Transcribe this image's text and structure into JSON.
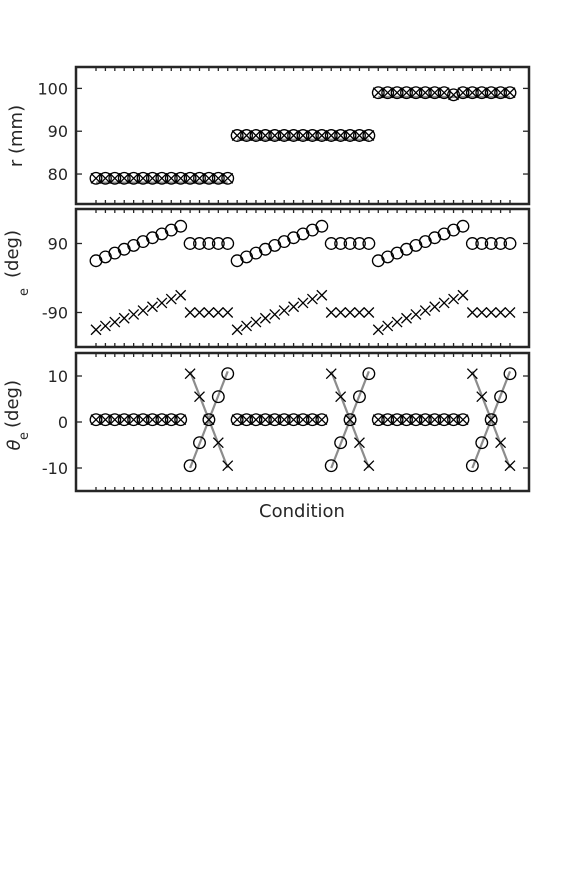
{
  "chart_data": {
    "type": "scatter",
    "xlabel": "Condition",
    "n_conditions": 45,
    "panels": [
      {
        "id": "r",
        "ylabel": "r (mm)",
        "ylabel_sub": "",
        "ylim": [
          73,
          105
        ],
        "yticks": [
          80,
          90,
          100
        ],
        "yticklabels": [
          "80",
          "90",
          "100"
        ],
        "series": [
          {
            "marker": "circle",
            "values": [
              79,
              79,
              79,
              79,
              79,
              79,
              79,
              79,
              79,
              79,
              79,
              79,
              79,
              79,
              79,
              89,
              89,
              89,
              89,
              89,
              89,
              89,
              89,
              89,
              89,
              89,
              89,
              89,
              89,
              89,
              99,
              99,
              99,
              99,
              99,
              99,
              99,
              99,
              98.5,
              99,
              99,
              99,
              99,
              99,
              99
            ]
          },
          {
            "marker": "x",
            "values": [
              79,
              79,
              79,
              79,
              79,
              79,
              79,
              79,
              79,
              79,
              79,
              79,
              79,
              79,
              79,
              89,
              89,
              89,
              89,
              89,
              89,
              89,
              89,
              89,
              89,
              89,
              89,
              89,
              89,
              89,
              99,
              99,
              99,
              99,
              99,
              99,
              99,
              99,
              98.5,
              99,
              99,
              99,
              99,
              99,
              99
            ]
          }
        ],
        "reference_lines": [
          {
            "x_range": [
              1,
              15
            ],
            "y": 78
          },
          {
            "x_range": [
              16,
              30
            ],
            "y": 88
          },
          {
            "x_range": [
              31,
              45
            ],
            "y": 98
          }
        ]
      },
      {
        "id": "phi",
        "ylabel": "(deg)",
        "ylabel_sub": "e",
        "ylim": [
          -180,
          180
        ],
        "yticks": [
          -90,
          90
        ],
        "yticklabels": [
          "-90",
          "90"
        ],
        "series": [
          {
            "marker": "circle",
            "values": [
              45,
              55,
              65,
              75,
              85,
              95,
              105,
              115,
              125,
              135,
              90,
              90,
              90,
              90,
              90,
              45,
              55,
              65,
              75,
              85,
              95,
              105,
              115,
              125,
              135,
              90,
              90,
              90,
              90,
              90,
              45,
              55,
              65,
              75,
              85,
              95,
              105,
              115,
              125,
              135,
              90,
              90,
              90,
              90,
              90
            ]
          },
          {
            "marker": "x",
            "values": [
              -135,
              -125,
              -115,
              -105,
              -95,
              -85,
              -75,
              -65,
              -55,
              -45,
              -90,
              -90,
              -90,
              -90,
              -90,
              -135,
              -125,
              -115,
              -105,
              -95,
              -85,
              -75,
              -65,
              -55,
              -45,
              -90,
              -90,
              -90,
              -90,
              -90,
              -135,
              -125,
              -115,
              -105,
              -95,
              -85,
              -75,
              -65,
              -55,
              -45,
              -90,
              -90,
              -90,
              -90,
              -90
            ]
          }
        ]
      },
      {
        "id": "theta",
        "ylabel": "(deg)",
        "ylabel_greek": "θ",
        "ylabel_sub": "e",
        "ylim": [
          -15,
          15
        ],
        "yticks": [
          -10,
          0,
          10
        ],
        "yticklabels": [
          "-10",
          "0",
          "10"
        ],
        "series": [
          {
            "marker": "circle",
            "values": [
              0.5,
              0.5,
              0.5,
              0.5,
              0.5,
              0.5,
              0.5,
              0.5,
              0.5,
              0.5,
              -9.5,
              -4.5,
              0.5,
              5.5,
              10.5,
              0.5,
              0.5,
              0.5,
              0.5,
              0.5,
              0.5,
              0.5,
              0.5,
              0.5,
              0.5,
              -9.5,
              -4.5,
              0.5,
              5.5,
              10.5,
              0.5,
              0.5,
              0.5,
              0.5,
              0.5,
              0.5,
              0.5,
              0.5,
              0.5,
              0.5,
              -9.5,
              -4.5,
              0.5,
              5.5,
              10.5
            ]
          },
          {
            "marker": "x",
            "values": [
              0.5,
              0.5,
              0.5,
              0.5,
              0.5,
              0.5,
              0.5,
              0.5,
              0.5,
              0.5,
              10.5,
              5.5,
              0.5,
              -4.5,
              -9.5,
              0.5,
              0.5,
              0.5,
              0.5,
              0.5,
              0.5,
              0.5,
              0.5,
              0.5,
              0.5,
              10.5,
              5.5,
              0.5,
              -4.5,
              -9.5,
              0.5,
              0.5,
              0.5,
              0.5,
              0.5,
              0.5,
              0.5,
              0.5,
              0.5,
              0.5,
              10.5,
              5.5,
              0.5,
              -4.5,
              -9.5
            ]
          }
        ],
        "reference_lines": [
          {
            "x_range": [
              11,
              15
            ],
            "y_range": [
              -10,
              11
            ]
          },
          {
            "x_range": [
              11,
              15
            ],
            "y_range": [
              11,
              -10
            ]
          },
          {
            "x_range": [
              26,
              30
            ],
            "y_range": [
              -10,
              11
            ]
          },
          {
            "x_range": [
              26,
              30
            ],
            "y_range": [
              11,
              -10
            ]
          },
          {
            "x_range": [
              41,
              45
            ],
            "y_range": [
              -10,
              11
            ]
          },
          {
            "x_range": [
              41,
              45
            ],
            "y_range": [
              11,
              -10
            ]
          }
        ]
      }
    ]
  }
}
